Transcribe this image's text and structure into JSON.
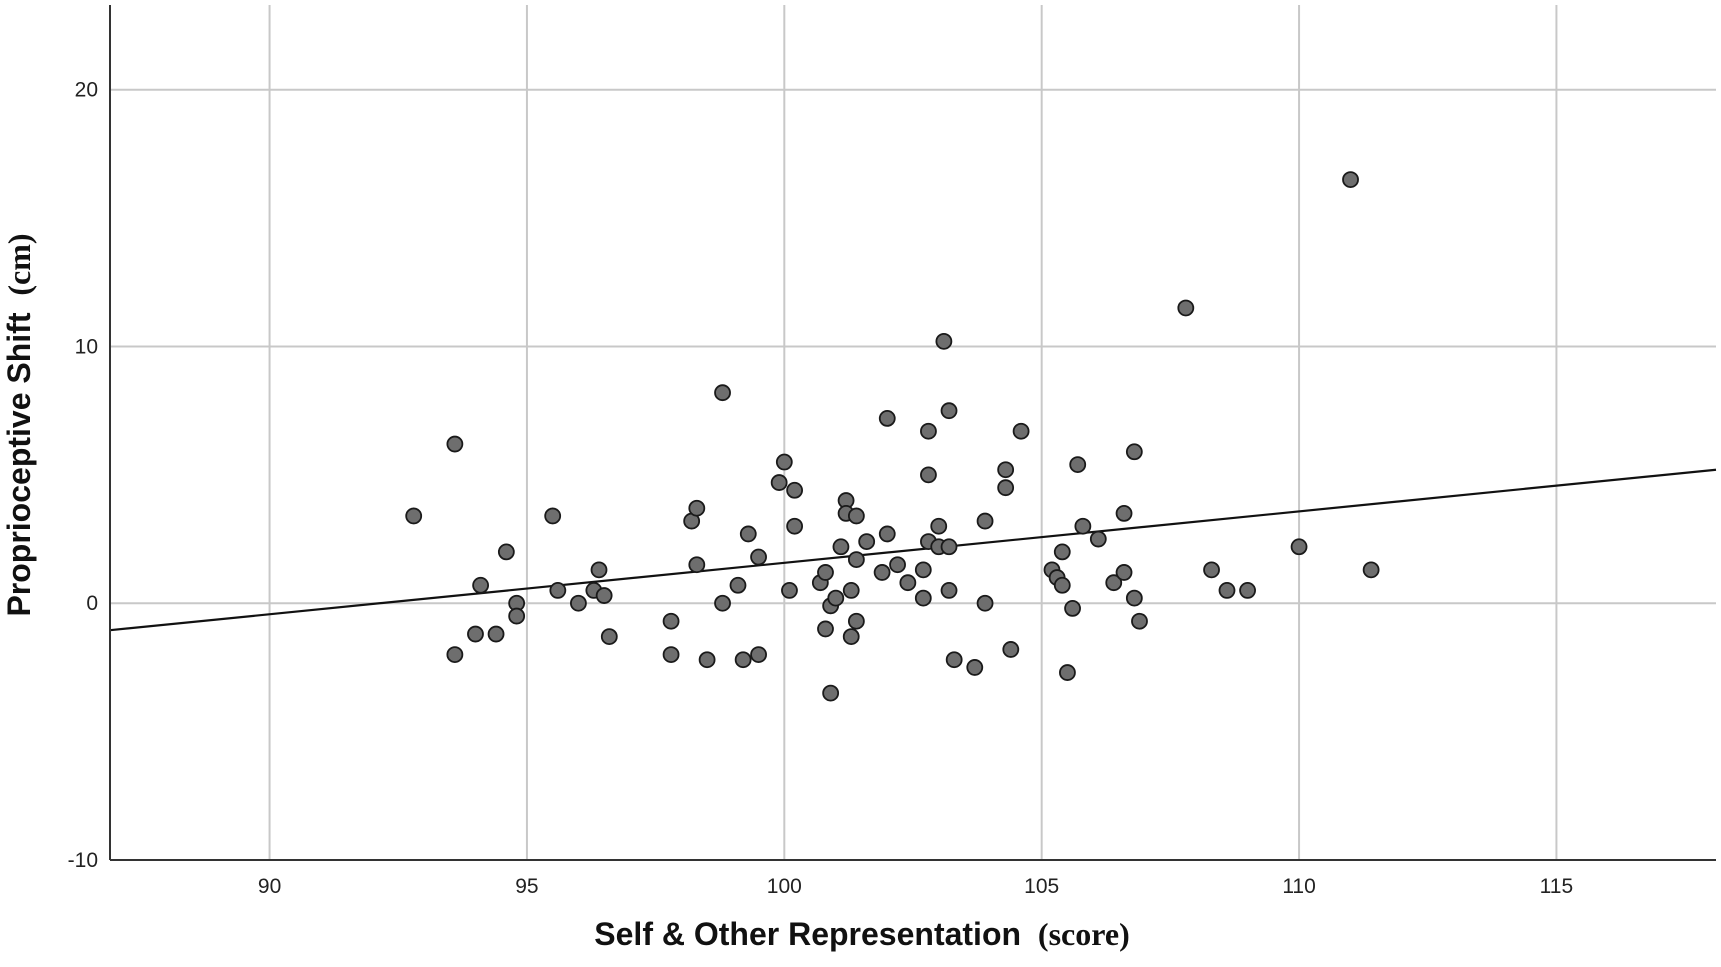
{
  "chart_data": {
    "type": "scatter",
    "xlabel": {
      "main": "Self & Other Representation",
      "unit": "(score)"
    },
    "ylabel": {
      "main": "Proprioceptive Shift",
      "unit": "(cm)"
    },
    "xlim": [
      86.9,
      118.1
    ],
    "ylim": [
      -10,
      23.3
    ],
    "xticks": [
      90,
      95,
      100,
      105,
      110,
      115
    ],
    "yticks": [
      -10,
      0,
      10,
      20
    ],
    "grid": true,
    "colors": {
      "marker_fill": "#6e6e6e",
      "marker_edge": "#1a1a1a",
      "grid": "#c8c8c8",
      "axis": "#333333",
      "fit_line": "#111111"
    },
    "fit_line": {
      "x": [
        86.9,
        118.1
      ],
      "y": [
        -1.05,
        5.2
      ]
    },
    "points": [
      {
        "x": 92.8,
        "y": 3.4
      },
      {
        "x": 93.6,
        "y": 6.2
      },
      {
        "x": 93.6,
        "y": -2.0
      },
      {
        "x": 94.0,
        "y": -1.2
      },
      {
        "x": 94.1,
        "y": 0.7
      },
      {
        "x": 94.4,
        "y": -1.2
      },
      {
        "x": 94.6,
        "y": 2.0
      },
      {
        "x": 94.8,
        "y": 0.0
      },
      {
        "x": 94.8,
        "y": -0.5
      },
      {
        "x": 95.5,
        "y": 3.4
      },
      {
        "x": 95.6,
        "y": 0.5
      },
      {
        "x": 96.0,
        "y": 0.0
      },
      {
        "x": 96.3,
        "y": 0.5
      },
      {
        "x": 96.4,
        "y": 1.3
      },
      {
        "x": 96.5,
        "y": 0.3
      },
      {
        "x": 96.6,
        "y": -1.3
      },
      {
        "x": 97.8,
        "y": -0.7
      },
      {
        "x": 97.8,
        "y": -2.0
      },
      {
        "x": 98.2,
        "y": 3.2
      },
      {
        "x": 98.3,
        "y": 3.7
      },
      {
        "x": 98.3,
        "y": 1.5
      },
      {
        "x": 98.5,
        "y": -2.2
      },
      {
        "x": 98.8,
        "y": 8.2
      },
      {
        "x": 98.8,
        "y": 0.0
      },
      {
        "x": 99.1,
        "y": 0.7
      },
      {
        "x": 99.2,
        "y": -2.2
      },
      {
        "x": 99.3,
        "y": 2.7
      },
      {
        "x": 99.5,
        "y": 1.8
      },
      {
        "x": 99.5,
        "y": -2.0
      },
      {
        "x": 99.9,
        "y": 4.7
      },
      {
        "x": 100.0,
        "y": 5.5
      },
      {
        "x": 100.1,
        "y": 0.5
      },
      {
        "x": 100.2,
        "y": 4.4
      },
      {
        "x": 100.2,
        "y": 3.0
      },
      {
        "x": 100.7,
        "y": 0.8
      },
      {
        "x": 100.8,
        "y": 1.2
      },
      {
        "x": 100.8,
        "y": -1.0
      },
      {
        "x": 100.9,
        "y": -0.1
      },
      {
        "x": 100.9,
        "y": -3.5
      },
      {
        "x": 101.0,
        "y": 0.2
      },
      {
        "x": 101.1,
        "y": 2.2
      },
      {
        "x": 101.2,
        "y": 4.0
      },
      {
        "x": 101.2,
        "y": 3.5
      },
      {
        "x": 101.3,
        "y": 0.5
      },
      {
        "x": 101.3,
        "y": -1.3
      },
      {
        "x": 101.4,
        "y": 3.4
      },
      {
        "x": 101.4,
        "y": 1.7
      },
      {
        "x": 101.4,
        "y": -0.7
      },
      {
        "x": 101.6,
        "y": 2.4
      },
      {
        "x": 101.9,
        "y": 1.2
      },
      {
        "x": 102.0,
        "y": 7.2
      },
      {
        "x": 102.0,
        "y": 2.7
      },
      {
        "x": 102.2,
        "y": 1.5
      },
      {
        "x": 102.4,
        "y": 0.8
      },
      {
        "x": 102.7,
        "y": 1.3
      },
      {
        "x": 102.7,
        "y": 0.2
      },
      {
        "x": 102.8,
        "y": 6.7
      },
      {
        "x": 102.8,
        "y": 5.0
      },
      {
        "x": 102.8,
        "y": 2.4
      },
      {
        "x": 103.0,
        "y": 3.0
      },
      {
        "x": 103.0,
        "y": 2.2
      },
      {
        "x": 103.1,
        "y": 10.2
      },
      {
        "x": 103.2,
        "y": 7.5
      },
      {
        "x": 103.2,
        "y": 2.2
      },
      {
        "x": 103.2,
        "y": 0.5
      },
      {
        "x": 103.3,
        "y": -2.2
      },
      {
        "x": 103.7,
        "y": -2.5
      },
      {
        "x": 103.9,
        "y": 3.2
      },
      {
        "x": 103.9,
        "y": 0.0
      },
      {
        "x": 104.3,
        "y": 5.2
      },
      {
        "x": 104.3,
        "y": 4.5
      },
      {
        "x": 104.4,
        "y": -1.8
      },
      {
        "x": 104.6,
        "y": 6.7
      },
      {
        "x": 105.2,
        "y": 1.3
      },
      {
        "x": 105.3,
        "y": 1.0
      },
      {
        "x": 105.4,
        "y": 0.7
      },
      {
        "x": 105.4,
        "y": 2.0
      },
      {
        "x": 105.5,
        "y": -2.7
      },
      {
        "x": 105.6,
        "y": -0.2
      },
      {
        "x": 105.7,
        "y": 5.4
      },
      {
        "x": 105.8,
        "y": 3.0
      },
      {
        "x": 106.1,
        "y": 2.5
      },
      {
        "x": 106.4,
        "y": 0.8
      },
      {
        "x": 106.6,
        "y": 3.5
      },
      {
        "x": 106.6,
        "y": 1.2
      },
      {
        "x": 106.8,
        "y": 5.9
      },
      {
        "x": 106.8,
        "y": 0.2
      },
      {
        "x": 106.9,
        "y": -0.7
      },
      {
        "x": 107.8,
        "y": 11.5
      },
      {
        "x": 108.3,
        "y": 1.3
      },
      {
        "x": 108.6,
        "y": 0.5
      },
      {
        "x": 109.0,
        "y": 0.5
      },
      {
        "x": 110.0,
        "y": 2.2
      },
      {
        "x": 111.0,
        "y": 16.5
      },
      {
        "x": 111.4,
        "y": 1.3
      }
    ]
  }
}
